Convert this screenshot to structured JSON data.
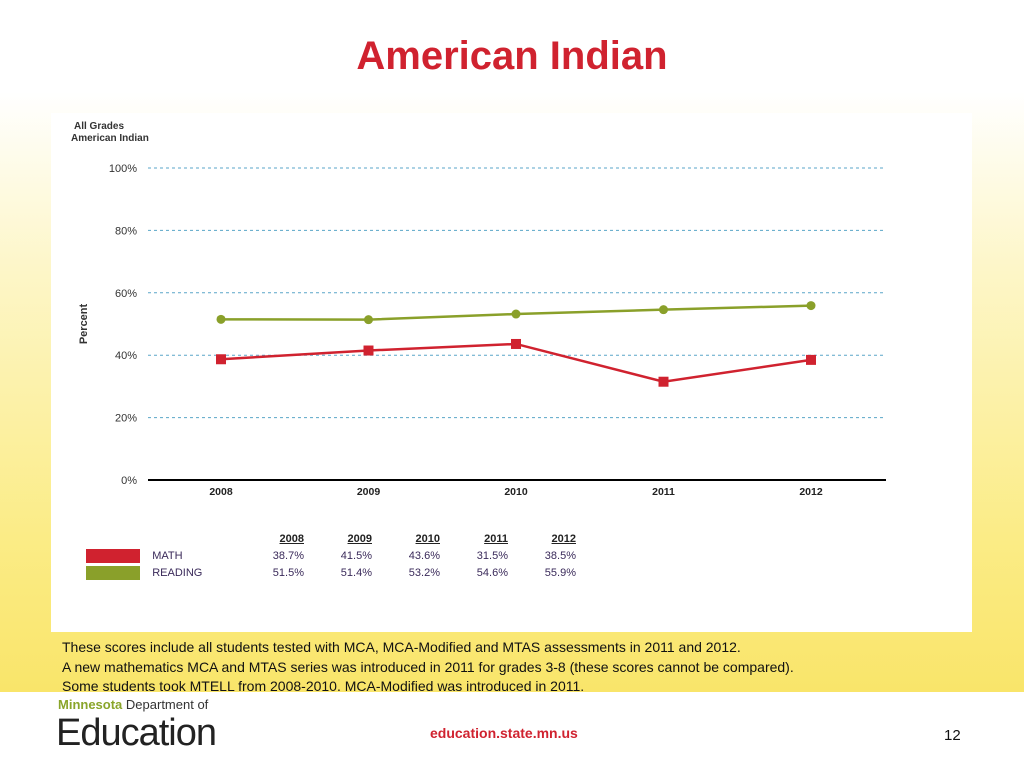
{
  "title": "American Indian",
  "chart_data": {
    "type": "line",
    "subtitle_lines": [
      "All Grades",
      "American Indian"
    ],
    "ylabel": "Percent",
    "categories": [
      "2008",
      "2009",
      "2010",
      "2011",
      "2012"
    ],
    "yticks": [
      "0%",
      "20%",
      "40%",
      "60%",
      "80%",
      "100%"
    ],
    "ylim": [
      0,
      100
    ],
    "grid": true,
    "series": [
      {
        "name": "MATH",
        "color": "#d0222f",
        "marker": "square",
        "values": [
          38.7,
          41.5,
          43.6,
          31.5,
          38.5
        ],
        "labels": [
          "38.7%",
          "41.5%",
          "43.6%",
          "31.5%",
          "38.5%"
        ]
      },
      {
        "name": "READING",
        "color": "#8aa02a",
        "marker": "circle",
        "values": [
          51.5,
          51.4,
          53.2,
          54.6,
          55.9
        ],
        "labels": [
          "51.5%",
          "51.4%",
          "53.2%",
          "54.6%",
          "55.9%"
        ]
      }
    ]
  },
  "notes": [
    "These scores include all students tested with MCA, MCA-Modified and MTAS assessments in 2011 and 2012.",
    "A new mathematics MCA and MTAS series was introduced in 2011 for grades 3-8 (these scores cannot be compared).",
    "Some students took MTELL from 2008-2010.  MCA-Modified was introduced in 2011."
  ],
  "footer": {
    "logo_top_bold": "Minnesota",
    "logo_top_rest": " Department of",
    "logo_main": "Education",
    "url": "education.state.mn.us",
    "page": "12"
  }
}
